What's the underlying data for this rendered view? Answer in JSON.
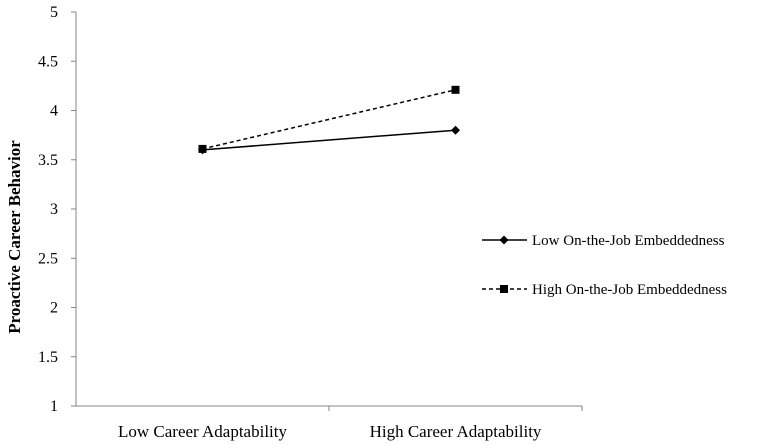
{
  "chart_data": {
    "type": "line",
    "title": "",
    "xlabel": "",
    "ylabel": "Proactive Career Behavior",
    "categories": [
      "Low Career Adaptability",
      "High Career Adaptability"
    ],
    "ylim": [
      1,
      5
    ],
    "yticks": [
      1,
      1.5,
      2,
      2.5,
      3,
      3.5,
      4,
      4.5,
      5
    ],
    "ytick_labels": [
      "1",
      "1.5",
      "2",
      "2.5",
      "3",
      "3.5",
      "4",
      "4.5",
      "5"
    ],
    "grid": false,
    "legend_position": "right",
    "series": [
      {
        "name": "Low On-the-Job Embeddedness",
        "values": [
          3.6,
          3.8
        ],
        "line_style": "solid",
        "marker": "diamond",
        "color": "#000000"
      },
      {
        "name": "High On-the-Job Embeddedness",
        "values": [
          3.61,
          4.21
        ],
        "line_style": "dashed",
        "marker": "square",
        "color": "#000000"
      }
    ]
  }
}
